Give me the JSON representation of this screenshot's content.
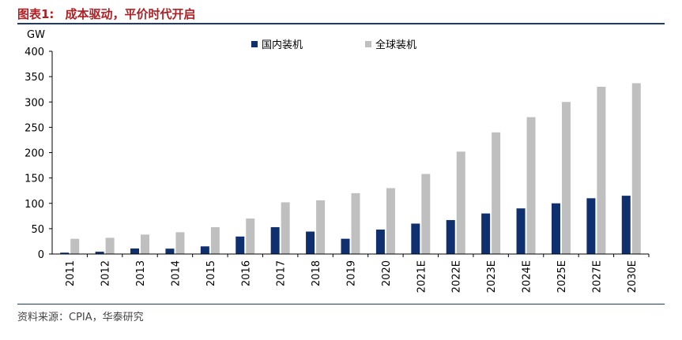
{
  "header": {
    "figure_label": "图表1:",
    "figure_title": "成本驱动，平价时代开启"
  },
  "footer": {
    "source": "资料来源：CPIA，华泰研究"
  },
  "colors": {
    "title": "#b01e23",
    "domestic": "#0f2f6e",
    "global": "#bfbfbf",
    "rule": "#1f3a6e"
  },
  "chart_data": {
    "type": "bar",
    "unit_label": "GW",
    "categories": [
      "2011",
      "2012",
      "2013",
      "2014",
      "2015",
      "2016",
      "2017",
      "2018",
      "2019",
      "2020",
      "2021E",
      "2022E",
      "2023E",
      "2024E",
      "2025E",
      "2027E",
      "2030E"
    ],
    "series": [
      {
        "name": "国内装机",
        "values": [
          2.7,
          4.5,
          10.9,
          10.6,
          15.1,
          34.5,
          53,
          44.3,
          30.1,
          48.2,
          60,
          67,
          80,
          90,
          100,
          110,
          115
        ]
      },
      {
        "name": "全球装机",
        "values": [
          30,
          32,
          38.4,
          43,
          53,
          70,
          102,
          106,
          120,
          130,
          158,
          202,
          240,
          270,
          300,
          330,
          337
        ]
      }
    ],
    "ylim": [
      0,
      400
    ],
    "yticks": [
      0,
      50,
      100,
      150,
      200,
      250,
      300,
      350,
      400
    ],
    "grid": false,
    "legend_position": "top"
  }
}
